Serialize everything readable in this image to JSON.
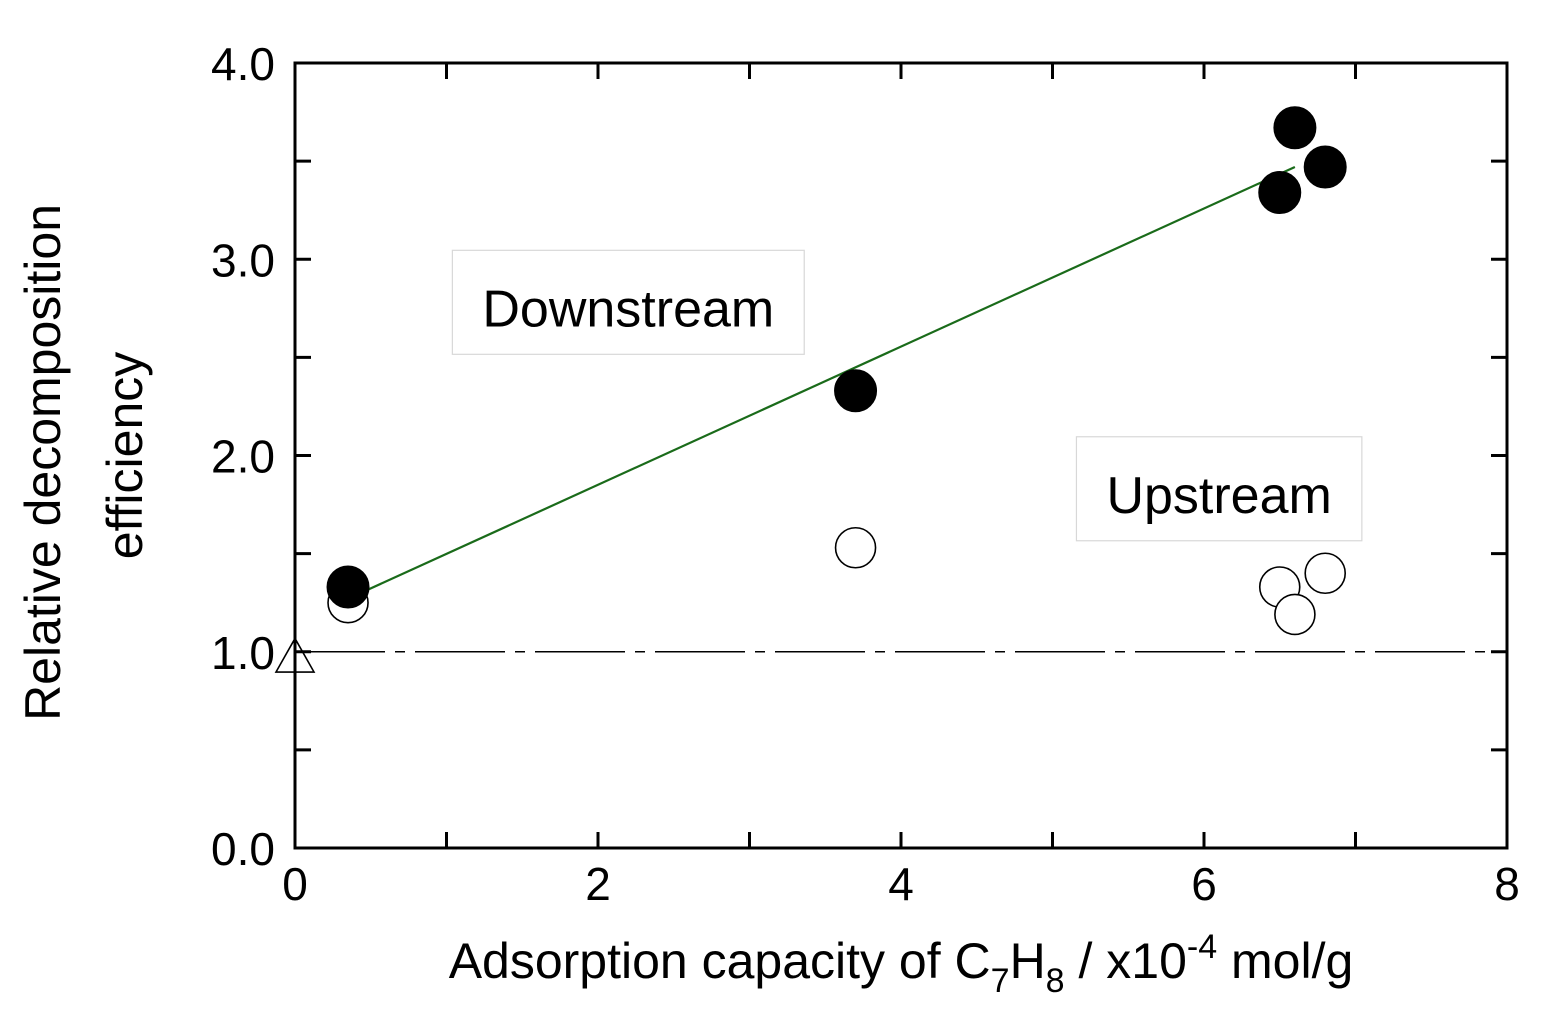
{
  "chart_data": {
    "type": "scatter",
    "title": "",
    "xlabel": {
      "prefix": "Adsorption capacity of C",
      "sub1": "7",
      "mid": "H",
      "sub2": "8",
      "unit_pre": " / x10",
      "sup": "-4",
      "unit_post": " mol/g"
    },
    "ylabel": [
      "Relative decomposition",
      "efficiency"
    ],
    "xlim": [
      0,
      8
    ],
    "ylim": [
      0.0,
      4.0
    ],
    "x_ticks": [
      "0",
      "2",
      "4",
      "6",
      "8"
    ],
    "y_ticks": [
      "0.0",
      "1.0",
      "2.0",
      "3.0",
      "4.0"
    ],
    "x_major": [
      0,
      2,
      4,
      6,
      8
    ],
    "x_minor": [
      1,
      3,
      5,
      7
    ],
    "y_major": [
      0,
      1,
      2,
      3,
      4
    ],
    "y_minor": [
      0.5,
      1.5,
      2.5,
      3.5
    ],
    "grid": false,
    "series": [
      {
        "marker": "filled-circle",
        "points": [
          {
            "x": 0.35,
            "y": 1.33
          },
          {
            "x": 3.7,
            "y": 2.33
          },
          {
            "x": 6.5,
            "y": 3.34
          },
          {
            "x": 6.6,
            "y": 3.67
          },
          {
            "x": 6.8,
            "y": 3.47
          }
        ]
      },
      {
        "marker": "open-circle",
        "points": [
          {
            "x": 0.35,
            "y": 1.25
          },
          {
            "x": 3.7,
            "y": 1.53
          },
          {
            "x": 6.5,
            "y": 1.33
          },
          {
            "x": 6.6,
            "y": 1.19
          },
          {
            "x": 6.8,
            "y": 1.4
          }
        ]
      },
      {
        "marker": "open-triangle",
        "points": [
          {
            "x": 0.0,
            "y": 0.97
          }
        ]
      }
    ],
    "fit_line": {
      "x": [
        0.35,
        6.6
      ],
      "y": [
        1.27,
        3.47
      ],
      "color": "#1a6b1a"
    },
    "reference_line": {
      "y": 1.0,
      "style": "dash-dot"
    },
    "annotations": [
      {
        "text": "Downstream",
        "x": 2.2,
        "y": 2.75
      },
      {
        "text": "Upstream",
        "x": 6.1,
        "y": 1.8
      }
    ]
  }
}
